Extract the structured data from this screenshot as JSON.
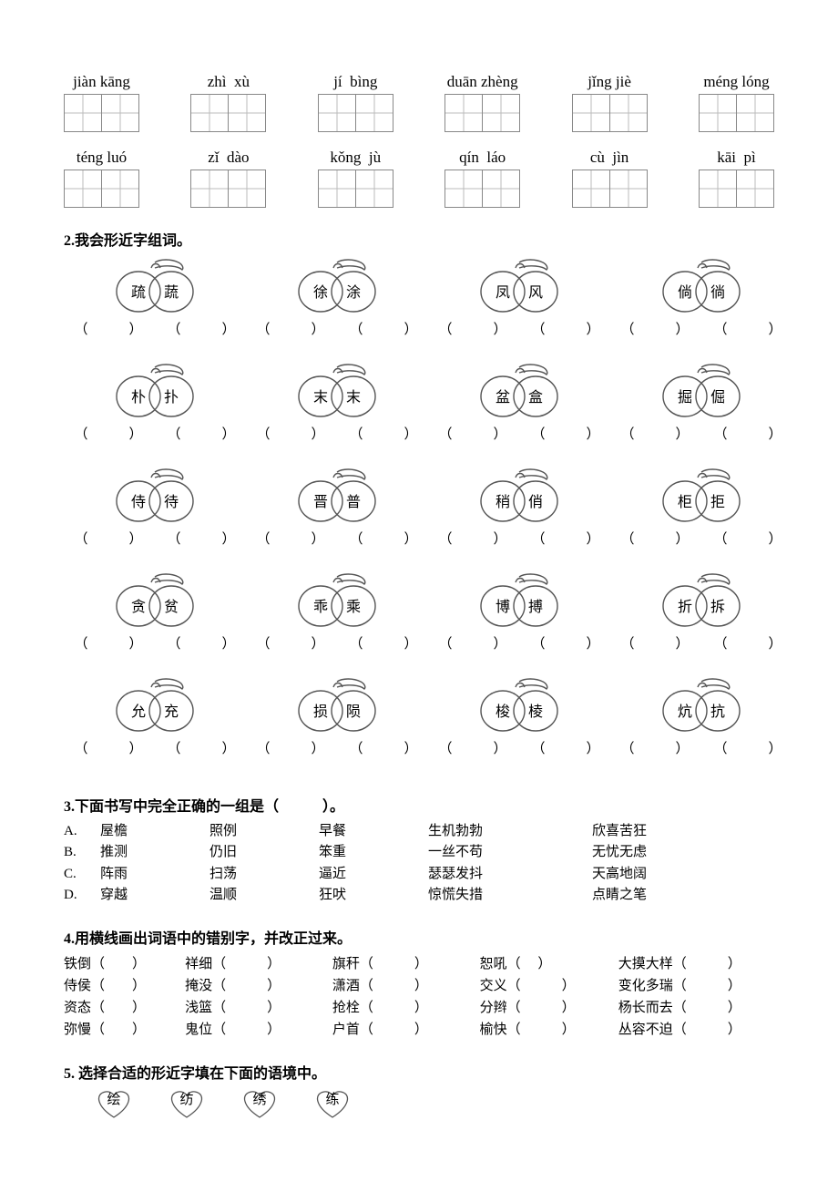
{
  "pinyin_section": {
    "rows": [
      [
        {
          "pinyin": "jiàn kāng"
        },
        {
          "pinyin": "zhì  xù"
        },
        {
          "pinyin": "jí  bìng"
        },
        {
          "pinyin": "duān zhèng"
        },
        {
          "pinyin": "jǐng jiè"
        },
        {
          "pinyin": "méng lóng"
        }
      ],
      [
        {
          "pinyin": "téng luó"
        },
        {
          "pinyin": "zǐ  dào"
        },
        {
          "pinyin": "kǒng  jù"
        },
        {
          "pinyin": "qín  láo"
        },
        {
          "pinyin": "cù  jìn"
        },
        {
          "pinyin": "kāi  pì"
        }
      ]
    ]
  },
  "q2": {
    "title": "2.我会形近字组词。",
    "rows": [
      [
        {
          "a": "疏",
          "b": "蔬"
        },
        {
          "a": "徐",
          "b": "涂"
        },
        {
          "a": "凤",
          "b": "风"
        },
        {
          "a": "倘",
          "b": "徜"
        }
      ],
      [
        {
          "a": "朴",
          "b": "扑"
        },
        {
          "a": "末",
          "b": "末"
        },
        {
          "a": "盆",
          "b": "盒"
        },
        {
          "a": "掘",
          "b": "倔"
        }
      ],
      [
        {
          "a": "侍",
          "b": "待"
        },
        {
          "a": "晋",
          "b": "普"
        },
        {
          "a": "稍",
          "b": "俏"
        },
        {
          "a": "柜",
          "b": "拒"
        }
      ],
      [
        {
          "a": "贪",
          "b": "贫"
        },
        {
          "a": "乖",
          "b": "乘"
        },
        {
          "a": "博",
          "b": "搏"
        },
        {
          "a": "折",
          "b": "拆"
        }
      ],
      [
        {
          "a": "允",
          "b": "充"
        },
        {
          "a": "损",
          "b": "陨"
        },
        {
          "a": "梭",
          "b": "棱"
        },
        {
          "a": "炕",
          "b": "抗"
        }
      ]
    ],
    "blank_left": "（　　　）",
    "blank_right": "（　　　）"
  },
  "q3": {
    "title_prefix": "3.下面书写中完全正确的一组是（",
    "title_suffix": "）。",
    "options": [
      {
        "label": "A.",
        "words": [
          "屋檐",
          "照例",
          "早餐",
          "生机勃勃",
          "欣喜苦狂"
        ]
      },
      {
        "label": "B.",
        "words": [
          "推测",
          "仍旧",
          "笨重",
          "一丝不苟",
          "无忧无虑"
        ]
      },
      {
        "label": "C.",
        "words": [
          "阵雨",
          "扫荡",
          "逼近",
          "瑟瑟发抖",
          "天高地阔"
        ]
      },
      {
        "label": "D.",
        "words": [
          "穿越",
          "温顺",
          "狂吠",
          "惊慌失措",
          "点睛之笔"
        ]
      }
    ]
  },
  "q4": {
    "title": "4.用横线画出词语中的错别字，并改正过来。",
    "rows": [
      [
        "铁倒（　　）",
        "祥细（　　　）",
        "旗秆（　　　）",
        "恕吼（　 ）",
        "大摸大样（　　　）"
      ],
      [
        "侍侯（　　）",
        "掩没（　　　）",
        "潇酒（　　　）",
        "交义（　　　）",
        "变化多瑞（　　　）"
      ],
      [
        "资态（　　）",
        "浅篮（　　　）",
        "抢栓（　　　）",
        "分辫（　　　）",
        "杨长而去（　　　）"
      ],
      [
        "弥慢（　　）",
        "鬼位（　　　）",
        "户首（　　　）",
        "榆快（　　　）",
        "丛容不迫（　　　）"
      ]
    ]
  },
  "q5": {
    "title": "5. 选择合适的形近字填在下面的语境中。",
    "chars": [
      "绘",
      "纺",
      "绣",
      "练"
    ]
  }
}
